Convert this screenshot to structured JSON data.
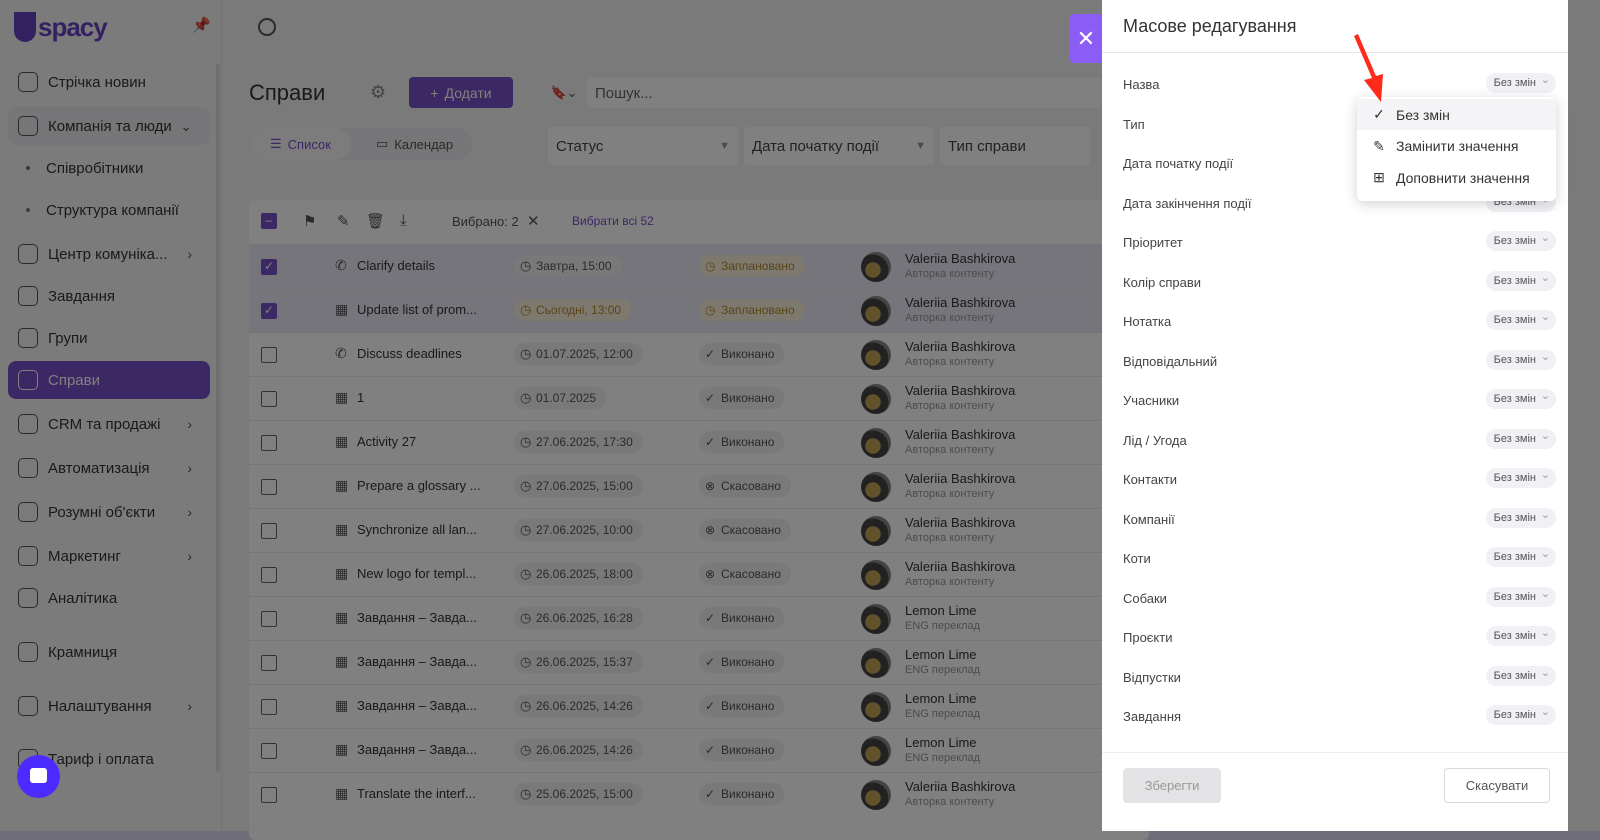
{
  "brand": "spacy",
  "sidebar": {
    "items": [
      {
        "label": "Стрічка новин",
        "icon": "home-icon"
      },
      {
        "label": "Компанія та люди",
        "icon": "building-icon",
        "chevron": "⌄"
      },
      {
        "label": "Співробітники",
        "sub": true
      },
      {
        "label": "Структура компанії",
        "sub": true
      },
      {
        "label": "Центр комуніка...",
        "icon": "chat-icon",
        "chevron": "›"
      },
      {
        "label": "Завдання",
        "icon": "check-circle-icon"
      },
      {
        "label": "Групи",
        "icon": "users-icon"
      },
      {
        "label": "Справи",
        "icon": "calendar-icon",
        "active": true
      },
      {
        "label": "CRM та продажі",
        "icon": "database-icon",
        "chevron": "›"
      },
      {
        "label": "Автоматизація",
        "icon": "bolt-icon",
        "chevron": "›"
      },
      {
        "label": "Розумні об'єкти",
        "icon": "smart-object-icon",
        "chevron": "›"
      },
      {
        "label": "Маркетинг",
        "icon": "megaphone-icon",
        "chevron": "›"
      },
      {
        "label": "Аналітика",
        "icon": "chart-icon"
      },
      {
        "label": "Крамниця",
        "icon": "store-icon"
      },
      {
        "label": "Налаштування",
        "icon": "gear-icon",
        "chevron": "›"
      },
      {
        "label": "Тариф і оплата",
        "icon": "wallet-icon"
      }
    ]
  },
  "main": {
    "title": "Справи",
    "add_label": "Додати",
    "search_placeholder": "Пошук...",
    "tabs": [
      {
        "label": "Список",
        "active": true
      },
      {
        "label": "Календар"
      }
    ],
    "filters": [
      "Статус",
      "Дата початку події",
      "Тип справи"
    ],
    "toolbar": {
      "selected": "Вибрано: 2",
      "select_all": "Вибрати всі 52"
    },
    "rows": [
      {
        "checked": true,
        "type": "phone",
        "name": "Clarify details",
        "date": "Завтра, 15:00",
        "status": "Заплановано",
        "status_kind": "planned",
        "person": "Valeriia Bashkirova",
        "role": "Авторка контенту"
      },
      {
        "checked": true,
        "type": "task",
        "name": "Update list of prom...",
        "date": "Сьогодні, 13:00",
        "date_today": true,
        "status": "Заплановано",
        "status_kind": "planned",
        "person": "Valeriia Bashkirova",
        "role": "Авторка контенту"
      },
      {
        "type": "phone",
        "name": "Discuss deadlines",
        "date": "01.07.2025, 12:00",
        "status": "Виконано",
        "status_kind": "done",
        "person": "Valeriia Bashkirova",
        "role": "Авторка контенту"
      },
      {
        "type": "task",
        "name": "1",
        "date": "01.07.2025",
        "status": "Виконано",
        "status_kind": "done",
        "person": "Valeriia Bashkirova",
        "role": "Авторка контенту"
      },
      {
        "type": "task",
        "name": "Activity 27",
        "date": "27.06.2025, 17:30",
        "status": "Виконано",
        "status_kind": "done",
        "person": "Valeriia Bashkirova",
        "role": "Авторка контенту"
      },
      {
        "type": "task",
        "name": "Prepare a glossary ...",
        "date": "27.06.2025, 15:00",
        "status": "Скасовано",
        "status_kind": "cancelled",
        "person": "Valeriia Bashkirova",
        "role": "Авторка контенту"
      },
      {
        "type": "task",
        "name": "Synchronize all lan...",
        "date": "27.06.2025, 10:00",
        "status": "Скасовано",
        "status_kind": "cancelled",
        "person": "Valeriia Bashkirova",
        "role": "Авторка контенту"
      },
      {
        "type": "task",
        "name": "New logo for templ...",
        "date": "26.06.2025, 18:00",
        "status": "Скасовано",
        "status_kind": "cancelled",
        "person": "Valeriia Bashkirova",
        "role": "Авторка контенту"
      },
      {
        "type": "task",
        "name": "Завдання – Завда...",
        "date": "26.06.2025, 16:28",
        "status": "Виконано",
        "status_kind": "done",
        "person": "Lemon Lime",
        "role": "ENG переклад"
      },
      {
        "type": "task",
        "name": "Завдання – Завда...",
        "date": "26.06.2025, 15:37",
        "status": "Виконано",
        "status_kind": "done",
        "person": "Lemon Lime",
        "role": "ENG переклад"
      },
      {
        "type": "task",
        "name": "Завдання – Завда...",
        "date": "26.06.2025, 14:26",
        "status": "Виконано",
        "status_kind": "done",
        "person": "Lemon Lime",
        "role": "ENG переклад"
      },
      {
        "type": "task",
        "name": "Завдання – Завда...",
        "date": "26.06.2025, 14:26",
        "status": "Виконано",
        "status_kind": "done",
        "person": "Lemon Lime",
        "role": "ENG переклад"
      },
      {
        "type": "task",
        "name": "Translate the interf...",
        "date": "25.06.2025, 15:00",
        "status": "Виконано",
        "status_kind": "done",
        "person": "Valeriia Bashkirova",
        "role": "Авторка контенту"
      }
    ]
  },
  "panel": {
    "title": "Масове редагування",
    "fields": [
      {
        "label": "Назва",
        "value": "Без змін"
      },
      {
        "label": "Тип",
        "value": "Без змін"
      },
      {
        "label": "Дата початку події",
        "value": "Без змін"
      },
      {
        "label": "Дата закінчення події",
        "value": "Без змін"
      },
      {
        "label": "Пріоритет",
        "value": "Без змін"
      },
      {
        "label": "Колір справи",
        "value": "Без змін"
      },
      {
        "label": "Нотатка",
        "value": "Без змін"
      },
      {
        "label": "Відповідальний",
        "value": "Без змін"
      },
      {
        "label": "Учасники",
        "value": "Без змін"
      },
      {
        "label": "Лід / Угода",
        "value": "Без змін"
      },
      {
        "label": "Контакти",
        "value": "Без змін"
      },
      {
        "label": "Компанії",
        "value": "Без змін"
      },
      {
        "label": "Коти",
        "value": "Без змін"
      },
      {
        "label": "Собаки",
        "value": "Без змін"
      },
      {
        "label": "Проєкти",
        "value": "Без змін"
      },
      {
        "label": "Відпустки",
        "value": "Без змін"
      },
      {
        "label": "Завдання",
        "value": "Без змін"
      }
    ],
    "menu": [
      {
        "label": "Без змін",
        "icon": "check-circle-icon",
        "glyph": "✓",
        "selected": true
      },
      {
        "label": "Замінити значення",
        "icon": "pencil-icon",
        "glyph": "✎"
      },
      {
        "label": "Доповнити значення",
        "icon": "plus-square-icon",
        "glyph": "⊞"
      }
    ],
    "save_label": "Зберегти",
    "cancel_label": "Скасувати"
  },
  "colors": {
    "accent": "#7c4ddb",
    "close": "#8b5cf6",
    "planned": "#b8871b",
    "annotation_arrow": "#ff2a1a"
  }
}
